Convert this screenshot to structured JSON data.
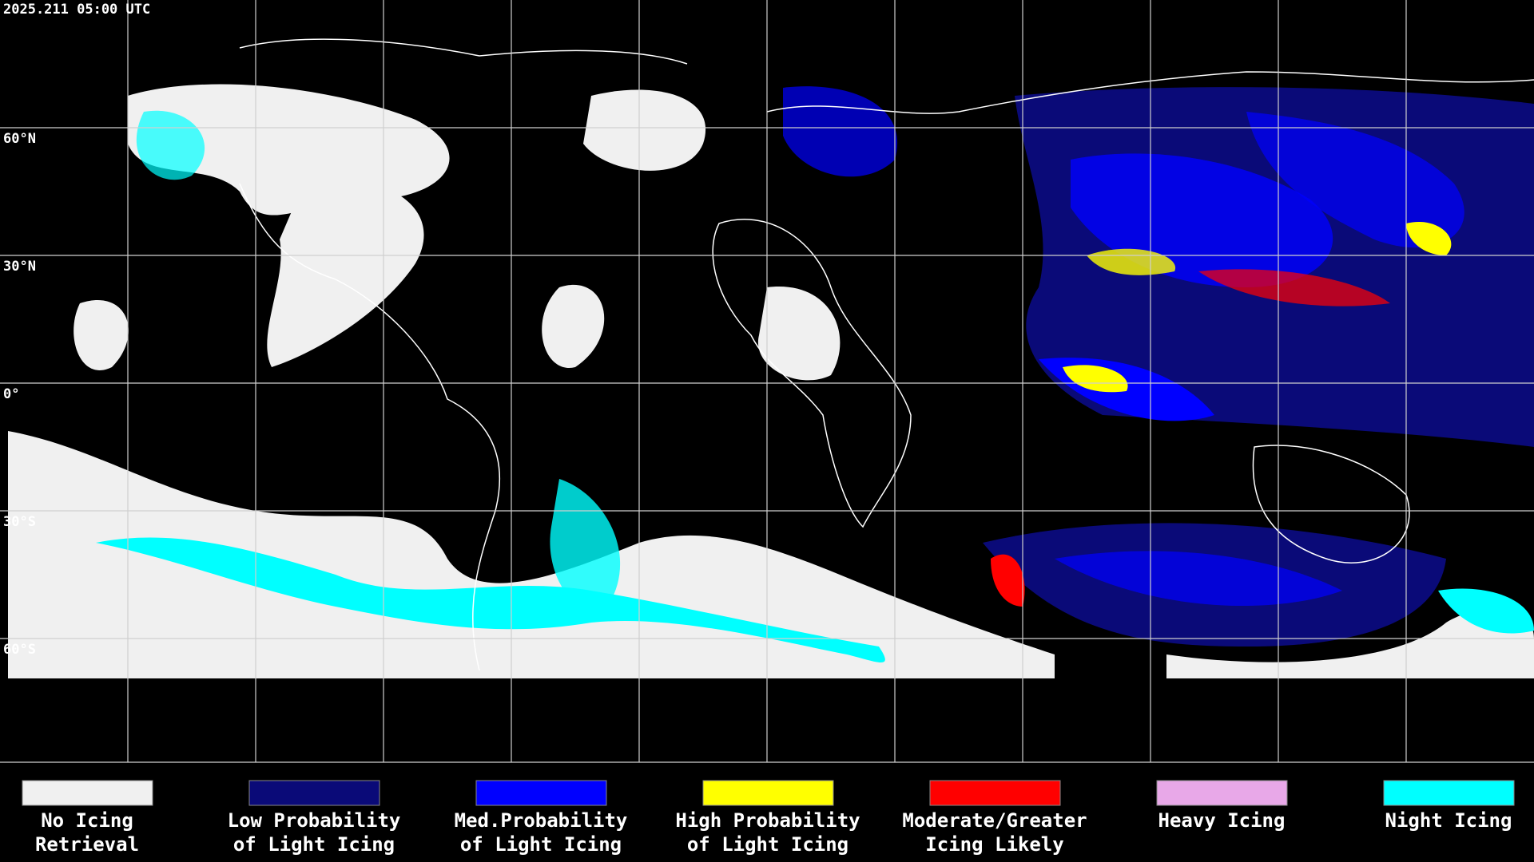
{
  "timestamp": "2025.211 05:00 UTC",
  "lat_labels": [
    "60°N",
    "30°N",
    "0°",
    "30°S",
    "60°S"
  ],
  "legend": [
    {
      "color": "#f0f0f0",
      "label": [
        "No Icing",
        "Retrieval"
      ]
    },
    {
      "color": "#0a0a78",
      "label": [
        "Low Probability",
        "of Light Icing"
      ]
    },
    {
      "color": "#0000ff",
      "label": [
        "Med.Probability",
        "of Light Icing"
      ]
    },
    {
      "color": "#ffff00",
      "label": [
        "High Probability",
        "of Light Icing"
      ]
    },
    {
      "color": "#ff0000",
      "label": [
        "Moderate/Greater",
        "Icing Likely"
      ]
    },
    {
      "color": "#e8a8e8",
      "label": [
        "Heavy Icing"
      ]
    },
    {
      "color": "#00ffff",
      "label": [
        "Night Icing"
      ]
    }
  ]
}
